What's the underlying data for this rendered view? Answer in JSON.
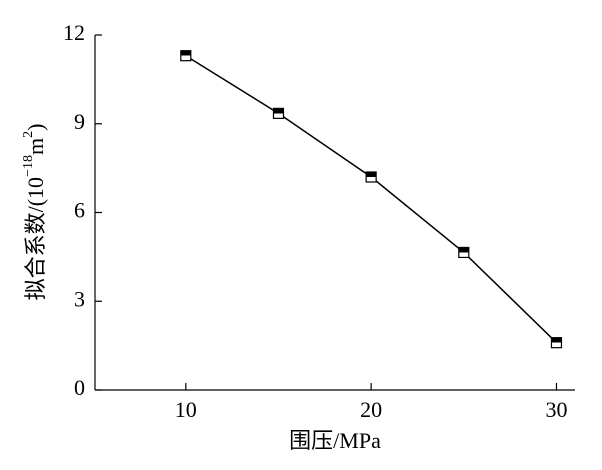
{
  "chart_data": {
    "type": "line",
    "x_label": "围压/MPa",
    "y_label_parts": [
      "拟合系数/(10",
      "−18",
      "m",
      "2",
      ")"
    ],
    "x": [
      10,
      15,
      20,
      25,
      30
    ],
    "series": [
      {
        "name": "拟合系数",
        "color": "#000000",
        "values": [
          11.3,
          9.35,
          7.2,
          4.65,
          1.6
        ]
      }
    ],
    "xlim": [
      5.1,
      31
    ],
    "xticks": [
      10,
      20,
      30
    ],
    "ylim": [
      0,
      12
    ],
    "yticks": [
      0,
      3,
      6,
      9,
      12
    ],
    "legend": false,
    "grid": false
  }
}
